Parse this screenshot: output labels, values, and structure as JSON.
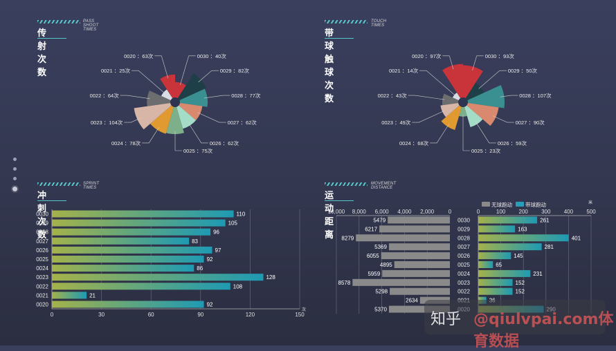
{
  "panels": {
    "pass": {
      "subtitle": "PASS SHOOT TIMES",
      "title": "传射次数"
    },
    "touch": {
      "subtitle": "TOUCH TIMES",
      "title": "带球触球次数"
    },
    "sprint": {
      "subtitle": "SPRINT TIMES",
      "title": "冲刺次数"
    },
    "distance": {
      "subtitle": "MOVEMENT DISTANCE",
      "title": "运动距离"
    }
  },
  "colors": {
    "accent": "#58c7c9",
    "nightingale": [
      "#c8343a",
      "#1e3f47",
      "#3a8f90",
      "#d9896e",
      "#a5dcc8",
      "#7daf8b",
      "#e09a2f",
      "#d7b6a8",
      "#6c6d6f",
      "#d9dde6"
    ],
    "bar_start": "#a4b24a",
    "bar_end": "#1e9ab3",
    "grey_bar": "#8a8a8a",
    "legend_blue": "#2a9dbb"
  },
  "unit": "次",
  "chart_data": [
    {
      "type": "pie",
      "variant": "nightingale-rose",
      "title": "传射次数",
      "categories": [
        "0030",
        "0029",
        "0028",
        "0027",
        "0026",
        "0025",
        "0024",
        "0023",
        "0022",
        "0021",
        "0020"
      ],
      "values": [
        40,
        82,
        77,
        62,
        62,
        75,
        78,
        104,
        64,
        25,
        63
      ],
      "labels": [
        "0030 ：40次",
        "0029 ：82次",
        "0028 ：77次",
        "0027 ：62次",
        "0026 ：62次",
        "0025 ：75次",
        "0024 ：78次",
        "0023 ：104次",
        "0022 ：64次",
        "0021 ：25次",
        "0020 ：63次"
      ]
    },
    {
      "type": "pie",
      "variant": "nightingale-rose",
      "title": "带球触球次数",
      "categories": [
        "0030",
        "0029",
        "0028",
        "0027",
        "0026",
        "0025",
        "0024",
        "0023",
        "0022",
        "0021",
        "0020"
      ],
      "values": [
        93,
        50,
        107,
        90,
        59,
        23,
        68,
        49,
        43,
        14,
        97
      ],
      "labels": [
        "0030 ：93次",
        "0029 ：50次",
        "0028 ：107次",
        "0027 ：90次",
        "0026 ：59次",
        "0025 ：23次",
        "0024 ：68次",
        "0023 ：49次",
        "0022 ：43次",
        "0021 ：14次",
        "0020 ：97次"
      ]
    },
    {
      "type": "bar",
      "orientation": "horizontal",
      "title": "冲刺次数",
      "categories": [
        "0030",
        "0029",
        "0028",
        "0027",
        "0026",
        "0025",
        "0024",
        "0023",
        "0022",
        "0021",
        "0020"
      ],
      "values": [
        110,
        105,
        96,
        83,
        97,
        92,
        86,
        128,
        108,
        21,
        92
      ],
      "xlim": [
        0,
        150
      ],
      "xticks": [
        "0",
        "30",
        "60",
        "90",
        "120",
        "150"
      ],
      "xunit": "次"
    },
    {
      "type": "bar",
      "orientation": "horizontal",
      "title": "运动距离",
      "categories": [
        "0030",
        "0029",
        "0028",
        "0027",
        "0026",
        "0025",
        "0024",
        "0023",
        "0022",
        "0021",
        "0020"
      ],
      "series": [
        {
          "name": "无球跑动",
          "values": [
            5479,
            6217,
            8279,
            5369,
            6055,
            4895,
            5959,
            8578,
            5298,
            2634,
            5370
          ],
          "xlim": [
            0,
            10000
          ],
          "xticks": [
            "10,000",
            "8,000",
            "6,000",
            "4,000",
            "2,000",
            "0"
          ]
        },
        {
          "name": "带球跑动",
          "values": [
            261,
            163,
            401,
            281,
            145,
            65,
            231,
            152,
            152,
            36,
            290
          ],
          "xlim": [
            0,
            500
          ],
          "xticks": [
            "0",
            "100",
            "200",
            "300",
            "400",
            "500"
          ],
          "xunit": "米"
        }
      ]
    }
  ],
  "watermark": {
    "zhihu": "知乎",
    "site": "@qiulvpai.com体育数据"
  }
}
